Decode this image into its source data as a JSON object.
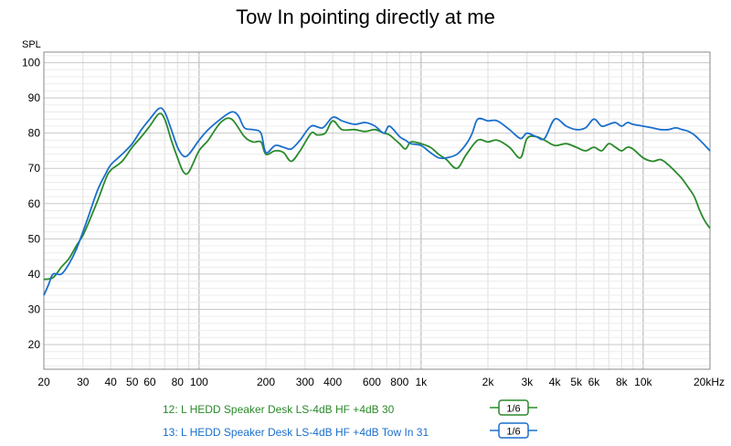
{
  "title": "Tow In pointing directly at me",
  "chart_data": {
    "type": "line",
    "title": "Tow In pointing directly at me",
    "ylabel": "SPL",
    "xlabel": "",
    "xscale": "log",
    "xlim": [
      20,
      20000
    ],
    "ylim": [
      13,
      103
    ],
    "y_ticks": [
      20,
      30,
      40,
      50,
      60,
      70,
      80,
      90,
      100
    ],
    "x_ticks": [
      {
        "v": 20,
        "label": "20"
      },
      {
        "v": 30,
        "label": "30"
      },
      {
        "v": 40,
        "label": "40"
      },
      {
        "v": 50,
        "label": "50"
      },
      {
        "v": 60,
        "label": "60"
      },
      {
        "v": 80,
        "label": "80"
      },
      {
        "v": 100,
        "label": "100"
      },
      {
        "v": 200,
        "label": "200"
      },
      {
        "v": 300,
        "label": "300"
      },
      {
        "v": 400,
        "label": "400"
      },
      {
        "v": 600,
        "label": "600"
      },
      {
        "v": 800,
        "label": "800"
      },
      {
        "v": 1000,
        "label": "1k"
      },
      {
        "v": 2000,
        "label": "2k"
      },
      {
        "v": 3000,
        "label": "3k"
      },
      {
        "v": 4000,
        "label": "4k"
      },
      {
        "v": 5000,
        "label": "5k"
      },
      {
        "v": 6000,
        "label": "6k"
      },
      {
        "v": 8000,
        "label": "8k"
      },
      {
        "v": 10000,
        "label": "10k"
      },
      {
        "v": 20000,
        "label": "20kHz"
      }
    ],
    "grid": true,
    "legend_position": "bottom-left",
    "series": [
      {
        "name": "12: L HEDD Speaker Desk LS-4dB HF +4dB 30",
        "smoothing": "1/6",
        "color": "#2a8a2a",
        "points": [
          [
            20,
            38.5
          ],
          [
            22,
            39
          ],
          [
            24,
            42
          ],
          [
            26,
            44.5
          ],
          [
            28,
            48
          ],
          [
            30,
            51
          ],
          [
            32,
            55
          ],
          [
            35,
            61
          ],
          [
            38,
            67
          ],
          [
            40,
            69.5
          ],
          [
            45,
            72
          ],
          [
            50,
            76
          ],
          [
            55,
            79
          ],
          [
            60,
            82
          ],
          [
            66,
            85.5
          ],
          [
            70,
            84
          ],
          [
            75,
            78
          ],
          [
            80,
            73
          ],
          [
            85,
            69
          ],
          [
            90,
            69
          ],
          [
            100,
            75
          ],
          [
            110,
            78
          ],
          [
            125,
            83
          ],
          [
            140,
            84
          ],
          [
            160,
            79
          ],
          [
            175,
            77.5
          ],
          [
            190,
            77.5
          ],
          [
            200,
            74
          ],
          [
            220,
            75
          ],
          [
            240,
            74.5
          ],
          [
            260,
            72
          ],
          [
            285,
            75
          ],
          [
            320,
            80
          ],
          [
            340,
            79.5
          ],
          [
            370,
            80
          ],
          [
            400,
            83.5
          ],
          [
            440,
            81
          ],
          [
            500,
            81
          ],
          [
            560,
            80.5
          ],
          [
            620,
            81
          ],
          [
            680,
            80
          ],
          [
            720,
            79.5
          ],
          [
            800,
            77
          ],
          [
            850,
            75.5
          ],
          [
            900,
            77.5
          ],
          [
            1000,
            77
          ],
          [
            1100,
            76
          ],
          [
            1200,
            74
          ],
          [
            1300,
            72.5
          ],
          [
            1450,
            70
          ],
          [
            1600,
            74
          ],
          [
            1800,
            78
          ],
          [
            2000,
            77.5
          ],
          [
            2200,
            78
          ],
          [
            2500,
            76
          ],
          [
            2800,
            73
          ],
          [
            3000,
            78.5
          ],
          [
            3300,
            79
          ],
          [
            3600,
            78
          ],
          [
            4000,
            76.5
          ],
          [
            4500,
            77
          ],
          [
            5000,
            76
          ],
          [
            5500,
            75
          ],
          [
            6000,
            76
          ],
          [
            6500,
            75
          ],
          [
            7000,
            77
          ],
          [
            7500,
            76
          ],
          [
            8000,
            75
          ],
          [
            8500,
            76
          ],
          [
            9000,
            75.5
          ],
          [
            10000,
            73
          ],
          [
            11000,
            72
          ],
          [
            12000,
            72.5
          ],
          [
            13000,
            71
          ],
          [
            14000,
            69
          ],
          [
            15000,
            67
          ],
          [
            16000,
            64.5
          ],
          [
            17000,
            62
          ],
          [
            18000,
            58
          ],
          [
            19000,
            55
          ],
          [
            20000,
            53
          ]
        ]
      },
      {
        "name": "13: L HEDD Speaker Desk LS-4dB HF +4dB Tow In 31",
        "smoothing": "1/6",
        "color": "#1a6fcc",
        "points": [
          [
            20,
            34
          ],
          [
            21,
            37
          ],
          [
            22,
            40
          ],
          [
            24,
            40
          ],
          [
            26,
            43
          ],
          [
            28,
            47
          ],
          [
            30,
            52
          ],
          [
            32,
            57
          ],
          [
            35,
            64
          ],
          [
            38,
            68.5
          ],
          [
            40,
            71
          ],
          [
            45,
            74
          ],
          [
            50,
            77
          ],
          [
            55,
            81
          ],
          [
            60,
            84
          ],
          [
            66,
            87
          ],
          [
            70,
            86
          ],
          [
            75,
            81
          ],
          [
            80,
            76
          ],
          [
            85,
            73.5
          ],
          [
            90,
            74
          ],
          [
            100,
            78
          ],
          [
            110,
            81
          ],
          [
            125,
            84
          ],
          [
            140,
            86
          ],
          [
            150,
            85
          ],
          [
            160,
            81.5
          ],
          [
            175,
            81
          ],
          [
            190,
            80
          ],
          [
            200,
            74.5
          ],
          [
            220,
            76.5
          ],
          [
            240,
            76
          ],
          [
            260,
            75.5
          ],
          [
            285,
            78
          ],
          [
            320,
            82
          ],
          [
            360,
            81.5
          ],
          [
            400,
            84.5
          ],
          [
            440,
            83.5
          ],
          [
            500,
            82.5
          ],
          [
            560,
            83
          ],
          [
            620,
            82
          ],
          [
            680,
            80
          ],
          [
            720,
            82
          ],
          [
            800,
            79
          ],
          [
            850,
            78
          ],
          [
            900,
            77
          ],
          [
            1000,
            76.5
          ],
          [
            1100,
            74.5
          ],
          [
            1200,
            73
          ],
          [
            1300,
            73
          ],
          [
            1450,
            74
          ],
          [
            1600,
            77
          ],
          [
            1700,
            80
          ],
          [
            1800,
            84
          ],
          [
            2000,
            83.5
          ],
          [
            2200,
            83.5
          ],
          [
            2500,
            81
          ],
          [
            2800,
            78.5
          ],
          [
            3000,
            80
          ],
          [
            3300,
            79
          ],
          [
            3600,
            78.5
          ],
          [
            4000,
            84
          ],
          [
            4500,
            82
          ],
          [
            5000,
            81
          ],
          [
            5500,
            81.5
          ],
          [
            6000,
            84
          ],
          [
            6500,
            82
          ],
          [
            7000,
            82.5
          ],
          [
            7500,
            83
          ],
          [
            8000,
            82
          ],
          [
            8500,
            83
          ],
          [
            9000,
            82.5
          ],
          [
            10000,
            82
          ],
          [
            11000,
            81.5
          ],
          [
            12000,
            81
          ],
          [
            13000,
            81
          ],
          [
            14000,
            81.5
          ],
          [
            15000,
            81
          ],
          [
            16000,
            80.5
          ],
          [
            17000,
            79.5
          ],
          [
            18000,
            78
          ],
          [
            19000,
            76.5
          ],
          [
            20000,
            75
          ]
        ]
      }
    ]
  }
}
